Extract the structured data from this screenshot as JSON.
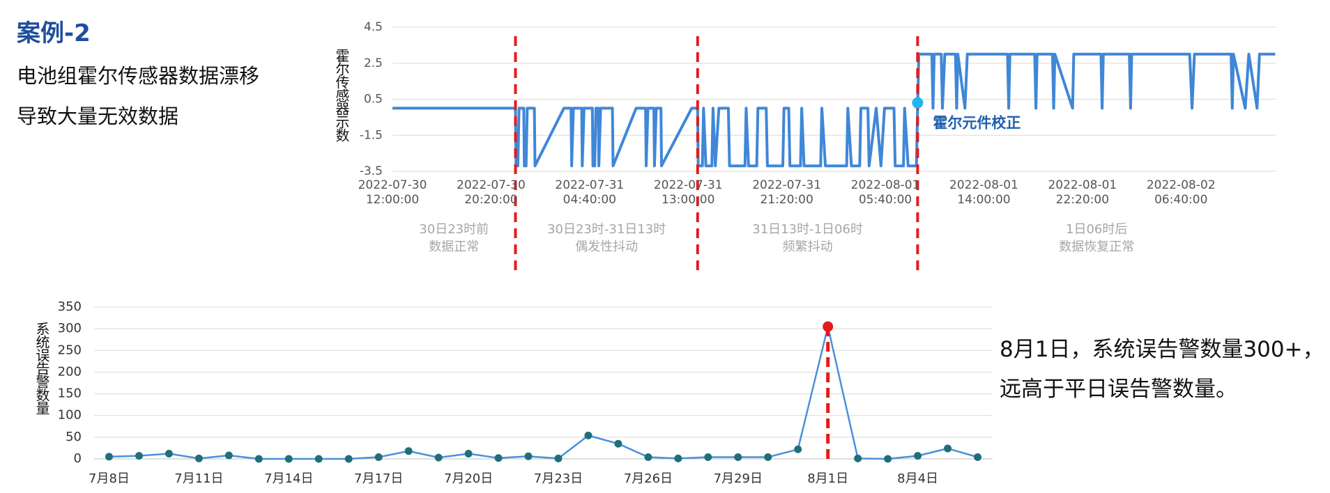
{
  "title": "案例-2",
  "description": [
    "电池组霍尔传感器数据漂移",
    "导致大量无效数据"
  ],
  "chart_data": [
    {
      "type": "line",
      "ylabel": "霍尔传感器示数",
      "color": "#3f87d8",
      "x": [
        0,
        624,
        627,
        636,
        642,
        666,
        669,
        678,
        684,
        720,
        723,
        870,
        906,
        909,
        918,
        960,
        963,
        972,
        1014,
        1017,
        1026,
        1032,
        1044,
        1047,
        1056,
        1116,
        1119,
        1236,
        1284,
        1287,
        1296,
        1326,
        1329,
        1338,
        1362,
        1365,
        1518,
        1548,
        1551,
        1572,
        1578,
        1590,
        1620,
        1626,
        1638,
        1656,
        1704,
        1710,
        1788,
        1794,
        1806,
        1848,
        1854,
        1896,
        1902,
        1980,
        1986,
        2010,
        2016,
        2070,
        2076,
        2088,
        2172,
        2178,
        2196,
        2304,
        2310,
        2328,
        2370,
        2376,
        2412,
        2418,
        2454,
        2478,
        2496,
        2544,
        2550,
        2592,
        2598,
        2616,
        2658,
        2664,
        2670,
        2736,
        2742,
        2748,
        2784,
        2790,
        2802,
        2856,
        2862,
        2868,
        2904,
        2916,
        3120,
        3126,
        3132,
        3258,
        3264,
        3270,
        3348,
        3354,
        3360,
        3450,
        3456,
        3594,
        3600,
        3606,
        3738,
        3744,
        3750,
        4044,
        4056,
        4068,
        4254,
        4260,
        4266,
        4326,
        4344,
        4386,
        4398,
        4478
      ],
      "values": [
        0,
        0,
        -3.2,
        -3.2,
        0,
        0,
        -3.2,
        -3.2,
        0,
        0,
        -3.2,
        0,
        0,
        -3.2,
        0,
        0,
        -3.2,
        0,
        0,
        -3.2,
        -3.2,
        0,
        0,
        -3.2,
        0,
        0,
        -3.2,
        0,
        0,
        -3.2,
        0,
        0,
        -3.2,
        0,
        0,
        -3.2,
        0,
        0,
        -3.2,
        -3.2,
        0,
        -3.2,
        -3.2,
        0,
        -3.2,
        0,
        0,
        -3.2,
        -3.2,
        0,
        -3.2,
        -3.2,
        0,
        0,
        -3.2,
        -3.2,
        0,
        0,
        -3.2,
        -3.2,
        0,
        -3.2,
        -3.2,
        0,
        -3.2,
        -3.2,
        0,
        -3.2,
        -3.2,
        0,
        0,
        -3.2,
        0,
        -3.2,
        0,
        0,
        -3.2,
        -3.2,
        0,
        -3.2,
        -3.2,
        0,
        3,
        3,
        0,
        3,
        3,
        0,
        3,
        3,
        0,
        3,
        0,
        3,
        3,
        0,
        3,
        3,
        0,
        3,
        3,
        0,
        3,
        0,
        3,
        3,
        0,
        3,
        3,
        0,
        3,
        3,
        0,
        3,
        3,
        0,
        3,
        0,
        3,
        0,
        3,
        3
      ],
      "xlim": [
        0,
        4480
      ],
      "xticks": [
        {
          "value": 0,
          "label": "2022-07-30 12:00:00"
        },
        {
          "value": 500,
          "label": "2022-07-30 20:20:00"
        },
        {
          "value": 1000,
          "label": "2022-07-31 04:40:00"
        },
        {
          "value": 1500,
          "label": "2022-07-31 13:00:00"
        },
        {
          "value": 2000,
          "label": "2022-07-31 21:20:00"
        },
        {
          "value": 2500,
          "label": "2022-08-01 05:40:00"
        },
        {
          "value": 3000,
          "label": "2022-08-01 14:00:00"
        },
        {
          "value": 3500,
          "label": "2022-08-01 22:20:00"
        },
        {
          "value": 4000,
          "label": "2022-08-02 06:40:00"
        }
      ],
      "ylim": [
        -3.5,
        4.5
      ],
      "yticks": [
        4.5,
        2.5,
        0.5,
        -1.5,
        -3.5
      ],
      "grid": true,
      "divider_color": "#e41b1b",
      "dividers": [
        624,
        1548,
        2664
      ],
      "phases": [
        {
          "lines": [
            "30日23时前",
            "数据正常"
          ]
        },
        {
          "lines": [
            "30日23时-31日13时",
            "偶发性抖动"
          ]
        },
        {
          "lines": [
            "31日13时-1日06时",
            "频繁抖动"
          ]
        },
        {
          "lines": [
            "1日06时后",
            "数据恢复正常"
          ]
        }
      ],
      "annotation": {
        "x": 2664,
        "y": 0.3,
        "label": "霍尔元件校正",
        "color": "#21b6f0"
      }
    },
    {
      "type": "line",
      "ylabel": "系统误告警数量",
      "color": "#4a90d9",
      "marker_color": "#1f6f7a",
      "categories": [
        "7月8日",
        null,
        null,
        "7月11日",
        null,
        null,
        "7月14日",
        null,
        null,
        "7月17日",
        null,
        null,
        "7月20日",
        null,
        null,
        "7月23日",
        null,
        null,
        "7月26日",
        null,
        null,
        "7月29日",
        null,
        null,
        "8月1日",
        null,
        null,
        "8月4日",
        null,
        null
      ],
      "values": [
        5,
        7,
        12,
        1,
        8,
        0,
        0,
        0,
        0,
        4,
        18,
        3,
        12,
        2,
        6,
        1,
        54,
        35,
        4,
        1,
        4,
        4,
        4,
        22,
        305,
        1,
        0,
        7,
        24,
        4
      ],
      "ylim": [
        0,
        350
      ],
      "yticks": [
        0,
        50,
        100,
        150,
        200,
        250,
        300,
        350
      ],
      "grid": true,
      "highlight": {
        "index": 24,
        "color": "#e41b1b"
      },
      "annotation": [
        "8月1日，系统误告警数量300+，",
        "远高于平日误告警数量。"
      ]
    }
  ]
}
